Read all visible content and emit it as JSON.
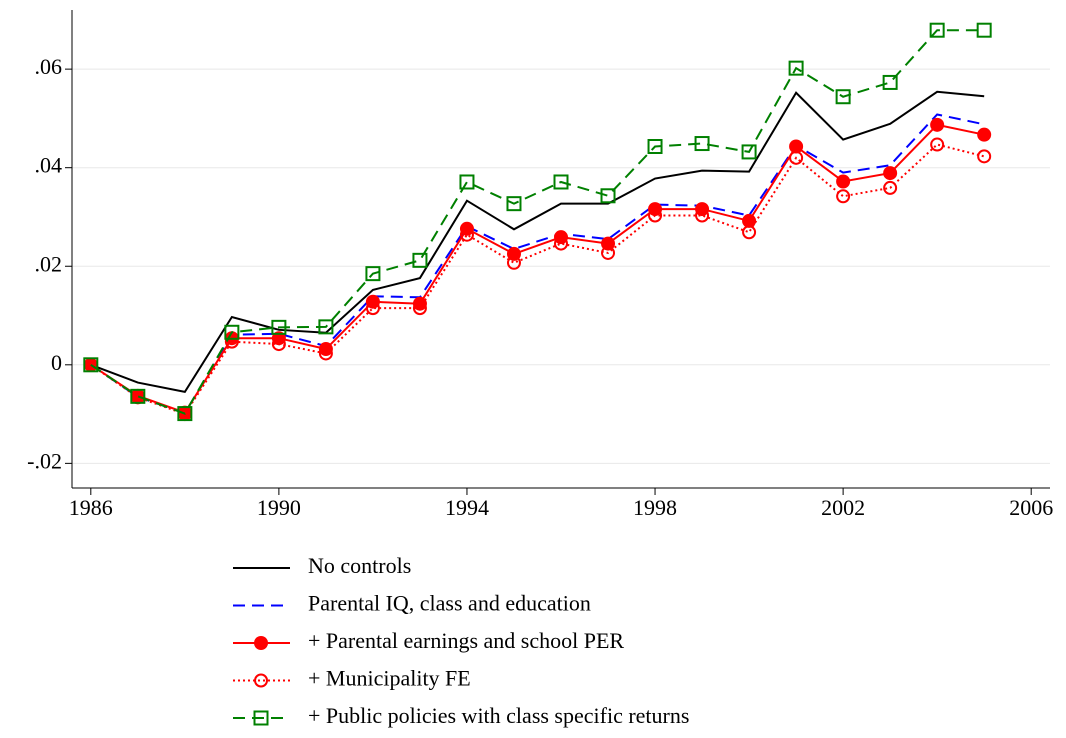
{
  "chart_data": {
    "type": "line",
    "x": [
      1986,
      1987,
      1988,
      1989,
      1990,
      1991,
      1992,
      1993,
      1994,
      1995,
      1996,
      1997,
      1998,
      1999,
      2000,
      2001,
      2002,
      2003,
      2004,
      2005
    ],
    "xlim": [
      1985.6,
      2006.4
    ],
    "xticks": [
      1986,
      1990,
      1994,
      1998,
      2002,
      2006
    ],
    "ylim": [
      -0.025,
      0.072
    ],
    "yticks": [
      {
        "value": -0.02,
        "label": "-.02"
      },
      0,
      {
        "value": 0.02,
        "label": ".02"
      },
      {
        "value": 0.04,
        "label": ".04"
      },
      {
        "value": 0.06,
        "label": ".06"
      }
    ],
    "grid": true,
    "series": [
      {
        "name": "No controls",
        "color": "#000000",
        "line_style": "solid",
        "marker": "none",
        "values": [
          0,
          -0.0036,
          -0.0055,
          0.0097,
          0.0071,
          0.0065,
          0.0152,
          0.0176,
          0.0333,
          0.0275,
          0.0327,
          0.0327,
          0.0378,
          0.0394,
          0.0392,
          0.0552,
          0.0457,
          0.0489,
          0.0554,
          0.0545
        ]
      },
      {
        "name": "Parental IQ, class and education",
        "color": "#0000ff",
        "line_style": "dashed",
        "marker": "none",
        "values": [
          0,
          -0.0065,
          -0.0098,
          0.0061,
          0.0063,
          0.0038,
          0.0139,
          0.0137,
          0.0281,
          0.0235,
          0.0266,
          0.0255,
          0.0325,
          0.0323,
          0.0303,
          0.0445,
          0.039,
          0.0405,
          0.0508,
          0.0488
        ]
      },
      {
        "name": "+ Parental earnings and school PER",
        "color": "#ff0000",
        "line_style": "solid",
        "marker": "circle-filled",
        "values": [
          0,
          -0.0063,
          -0.0097,
          0.0054,
          0.0054,
          0.0032,
          0.0128,
          0.0124,
          0.0276,
          0.0225,
          0.0259,
          0.0246,
          0.0316,
          0.0316,
          0.0292,
          0.0443,
          0.0372,
          0.0389,
          0.0487,
          0.0467
        ]
      },
      {
        "name": "+ Municipality FE",
        "color": "#ff0000",
        "line_style": "dotted",
        "marker": "circle-open",
        "values": [
          0,
          -0.0066,
          -0.01,
          0.0047,
          0.0042,
          0.0023,
          0.0115,
          0.0115,
          0.0264,
          0.0207,
          0.0246,
          0.0227,
          0.0303,
          0.0303,
          0.0269,
          0.042,
          0.0342,
          0.0359,
          0.0447,
          0.0423
        ]
      },
      {
        "name": "+ Public policies with class specific returns",
        "color": "#008000",
        "line_style": "dashed",
        "marker": "square-open",
        "values": [
          0,
          -0.0064,
          -0.0099,
          0.0066,
          0.0076,
          0.0077,
          0.0185,
          0.0212,
          0.0371,
          0.0327,
          0.0371,
          0.0343,
          0.0443,
          0.0449,
          0.0432,
          0.0602,
          0.0544,
          0.0573,
          0.0679,
          0.0679
        ]
      }
    ]
  }
}
